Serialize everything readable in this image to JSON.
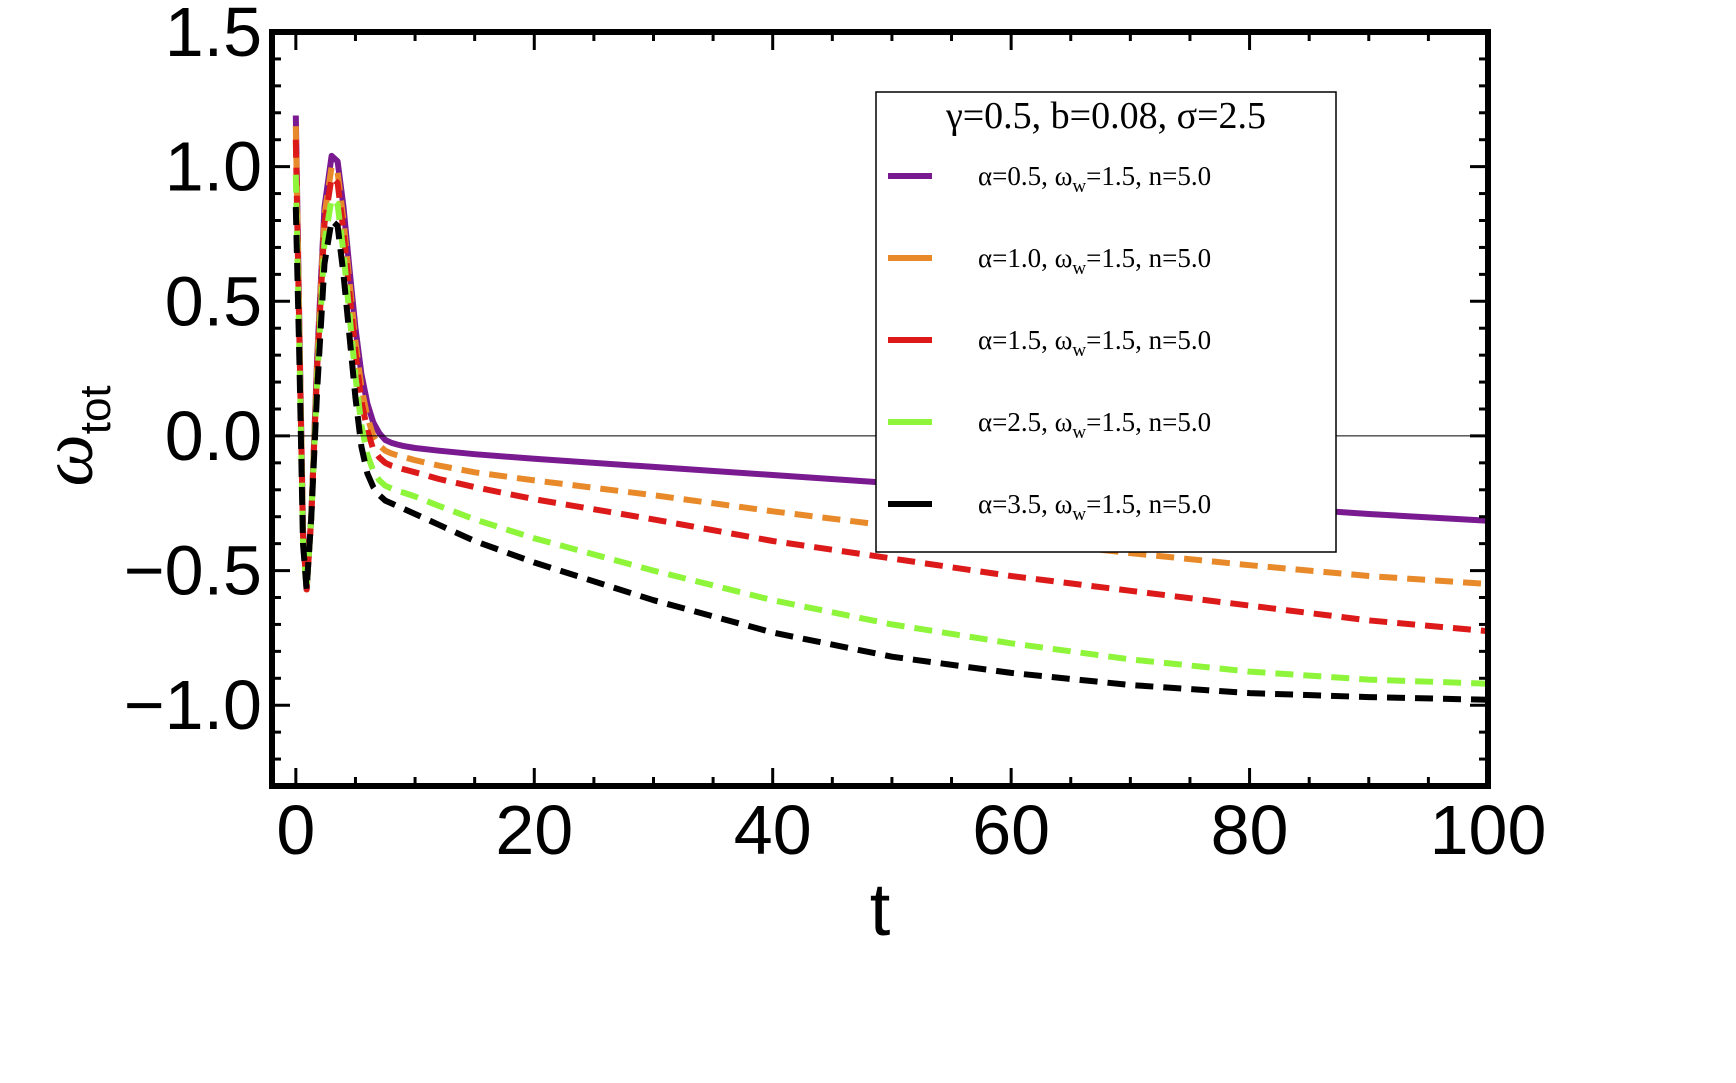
{
  "chart_data": {
    "type": "line",
    "xlabel": "t",
    "ylabel": "ω",
    "ylabel_sub": "tot",
    "xlim": [
      -2,
      100
    ],
    "ylim": [
      -1.3,
      1.5
    ],
    "xticks": [
      0,
      20,
      40,
      60,
      80,
      100
    ],
    "xtick_labels": [
      "0",
      "20",
      "40",
      "60",
      "80",
      "100"
    ],
    "yticks": [
      1.5,
      1.0,
      0.5,
      0.0,
      -0.5,
      -1.0
    ],
    "ytick_labels": [
      "1.5",
      "1.0",
      "0.5",
      "0.0",
      "−0.5",
      "−1.0"
    ],
    "grid": false,
    "legend_title": "γ=0.5, b=0.08, σ=2.5",
    "legend_position": "top-right",
    "series": [
      {
        "name": "α=0.5, ω_w=1.5, n=5.0",
        "label_parts": [
          "α=0.5, ω",
          "w",
          "=1.5, n=5.0"
        ],
        "color": "#7a1a91",
        "dashed": false,
        "x": [
          0,
          0.3,
          0.6,
          0.9,
          1.3,
          1.8,
          2.4,
          3.0,
          3.5,
          4.0,
          4.5,
          5.0,
          5.5,
          6.0,
          6.5,
          7.0,
          7.5,
          8.0,
          8.5,
          9.0,
          10,
          12,
          15,
          20,
          30,
          40,
          50,
          60,
          70,
          80,
          90,
          100
        ],
        "y": [
          1.19,
          0.4,
          -0.35,
          -0.57,
          -0.3,
          0.3,
          0.85,
          1.04,
          1.02,
          0.85,
          0.62,
          0.4,
          0.23,
          0.12,
          0.05,
          0.01,
          -0.015,
          -0.025,
          -0.032,
          -0.037,
          -0.045,
          -0.055,
          -0.068,
          -0.085,
          -0.115,
          -0.145,
          -0.175,
          -0.205,
          -0.235,
          -0.26,
          -0.29,
          -0.315
        ]
      },
      {
        "name": "α=1.0, ω_w=1.5, n=5.0",
        "label_parts": [
          "α=1.0, ω",
          "w",
          "=1.5, n=5.0"
        ],
        "color": "#e88a2a",
        "dashed": true,
        "x": [
          0,
          0.3,
          0.6,
          0.9,
          1.3,
          1.8,
          2.4,
          3.0,
          3.5,
          4.0,
          4.5,
          5.0,
          5.5,
          6.0,
          6.5,
          7.0,
          7.5,
          8.0,
          8.5,
          9.0,
          10,
          12,
          15,
          20,
          30,
          40,
          50,
          60,
          70,
          80,
          90,
          100
        ],
        "y": [
          1.15,
          0.38,
          -0.36,
          -0.57,
          -0.3,
          0.28,
          0.82,
          1.0,
          0.98,
          0.8,
          0.57,
          0.35,
          0.18,
          0.07,
          0.0,
          -0.035,
          -0.055,
          -0.065,
          -0.072,
          -0.078,
          -0.09,
          -0.11,
          -0.135,
          -0.165,
          -0.22,
          -0.28,
          -0.335,
          -0.385,
          -0.435,
          -0.48,
          -0.52,
          -0.55
        ]
      },
      {
        "name": "α=1.5, ω_w=1.5, n=5.0",
        "label_parts": [
          "α=1.5, ω",
          "w",
          "=1.5, n=5.0"
        ],
        "color": "#dd1a1a",
        "dashed": true,
        "x": [
          0,
          0.3,
          0.6,
          0.9,
          1.3,
          1.8,
          2.4,
          3.0,
          3.5,
          4.0,
          4.5,
          5.0,
          5.5,
          6.0,
          6.5,
          7.0,
          7.5,
          8.0,
          8.5,
          9.0,
          10,
          12,
          15,
          20,
          30,
          40,
          50,
          60,
          70,
          80,
          90,
          100
        ],
        "y": [
          1.1,
          0.36,
          -0.37,
          -0.57,
          -0.3,
          0.26,
          0.79,
          0.96,
          0.94,
          0.76,
          0.53,
          0.31,
          0.13,
          0.02,
          -0.05,
          -0.08,
          -0.1,
          -0.11,
          -0.117,
          -0.123,
          -0.135,
          -0.16,
          -0.19,
          -0.235,
          -0.31,
          -0.39,
          -0.455,
          -0.52,
          -0.575,
          -0.63,
          -0.685,
          -0.725
        ]
      },
      {
        "name": "α=2.5, ω_w=1.5, n=5.0",
        "label_parts": [
          "α=2.5, ω",
          "w",
          "=1.5, n=5.0"
        ],
        "color": "#8ef53a",
        "dashed": true,
        "x": [
          0,
          0.3,
          0.6,
          0.9,
          1.3,
          1.8,
          2.4,
          3.0,
          3.5,
          4.0,
          4.5,
          5.0,
          5.5,
          6.0,
          6.5,
          7.0,
          7.5,
          8.0,
          8.5,
          9.0,
          10,
          12,
          15,
          20,
          30,
          40,
          50,
          60,
          70,
          80,
          90,
          100
        ],
        "y": [
          0.97,
          0.32,
          -0.39,
          -0.57,
          -0.3,
          0.22,
          0.72,
          0.88,
          0.86,
          0.68,
          0.45,
          0.22,
          0.04,
          -0.07,
          -0.13,
          -0.165,
          -0.185,
          -0.195,
          -0.205,
          -0.21,
          -0.225,
          -0.26,
          -0.31,
          -0.38,
          -0.5,
          -0.61,
          -0.7,
          -0.77,
          -0.83,
          -0.875,
          -0.905,
          -0.92
        ]
      },
      {
        "name": "α=3.5, ω_w=1.5, n=5.0",
        "label_parts": [
          "α=3.5, ω",
          "w",
          "=1.5, n=5.0"
        ],
        "color": "#000000",
        "dashed": true,
        "x": [
          0,
          0.3,
          0.6,
          0.9,
          1.3,
          1.8,
          2.4,
          3.0,
          3.5,
          4.0,
          4.5,
          5.0,
          5.5,
          6.0,
          6.5,
          7.0,
          7.5,
          8.0,
          8.5,
          9.0,
          10,
          12,
          15,
          20,
          30,
          40,
          50,
          60,
          70,
          80,
          90,
          100
        ],
        "y": [
          0.85,
          0.28,
          -0.4,
          -0.57,
          -0.3,
          0.18,
          0.64,
          0.8,
          0.78,
          0.6,
          0.37,
          0.14,
          -0.04,
          -0.14,
          -0.19,
          -0.22,
          -0.24,
          -0.25,
          -0.26,
          -0.27,
          -0.29,
          -0.33,
          -0.39,
          -0.47,
          -0.61,
          -0.73,
          -0.82,
          -0.88,
          -0.925,
          -0.955,
          -0.97,
          -0.98
        ]
      }
    ]
  }
}
